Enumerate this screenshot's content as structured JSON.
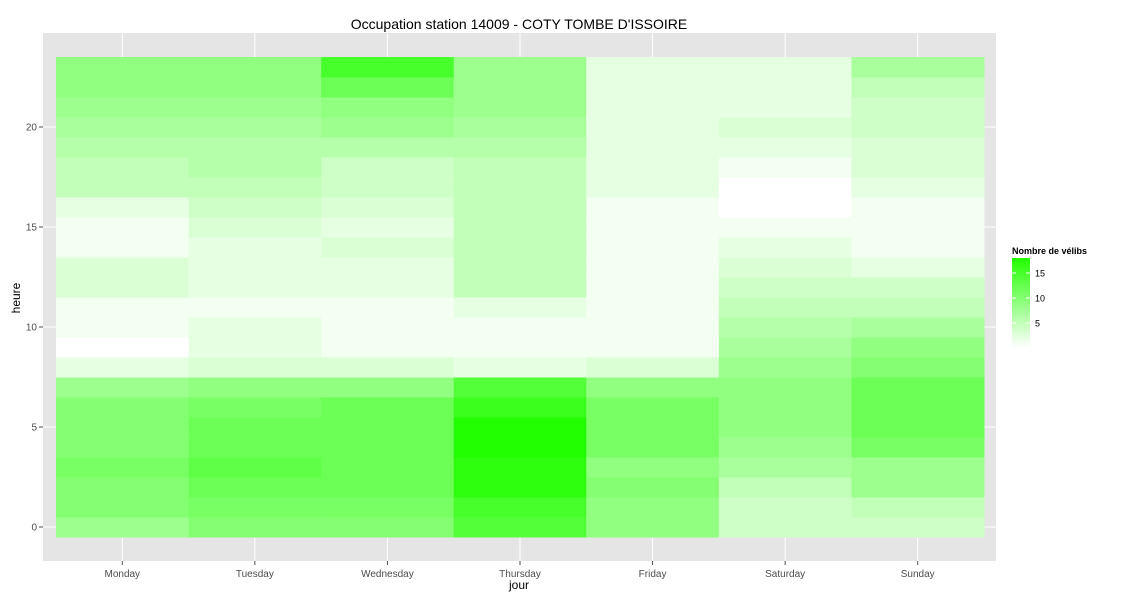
{
  "chart_data": {
    "type": "heatmap",
    "title": "Occupation station 14009 - COTY TOMBE D'ISSOIRE",
    "xlabel": "jour",
    "ylabel": "heure",
    "categories": [
      "Monday",
      "Tuesday",
      "Wednesday",
      "Thursday",
      "Friday",
      "Saturday",
      "Sunday"
    ],
    "hours": [
      0,
      1,
      2,
      3,
      4,
      5,
      6,
      7,
      8,
      9,
      10,
      11,
      12,
      13,
      14,
      15,
      16,
      17,
      18,
      19,
      20,
      21,
      22,
      23
    ],
    "y_ticks": [
      0,
      5,
      10,
      15,
      20
    ],
    "ylim": [
      -0.5,
      23.5
    ],
    "grid": true,
    "values": [
      [
        8,
        10,
        10,
        11,
        10,
        10,
        10,
        8,
        2,
        0,
        1,
        1,
        3,
        3,
        1,
        1,
        2,
        5,
        5,
        6,
        7,
        8,
        9,
        9
      ],
      [
        10,
        11,
        12,
        13,
        12,
        12,
        11,
        9,
        3,
        2,
        2,
        1,
        2,
        2,
        2,
        3,
        4,
        5,
        6,
        6,
        7,
        8,
        9,
        9
      ],
      [
        10,
        11,
        12,
        12,
        12,
        12,
        12,
        9,
        3,
        1,
        1,
        1,
        2,
        2,
        3,
        2,
        3,
        4,
        4,
        6,
        8,
        9,
        12,
        15
      ],
      [
        14,
        15,
        17,
        17,
        18,
        18,
        16,
        14,
        2,
        1,
        1,
        2,
        5,
        5,
        5,
        5,
        5,
        5,
        5,
        6,
        7,
        8,
        8,
        8
      ],
      [
        9,
        9,
        10,
        9,
        11,
        11,
        11,
        9,
        3,
        1,
        1,
        1,
        1,
        1,
        1,
        1,
        1,
        2,
        2,
        2,
        2,
        2,
        2,
        2
      ],
      [
        4,
        4,
        5,
        7,
        8,
        9,
        9,
        9,
        8,
        7,
        6,
        5,
        4,
        3,
        2,
        1,
        0,
        0,
        1,
        2,
        3,
        2,
        2,
        2
      ],
      [
        4,
        5,
        8,
        8,
        11,
        12,
        12,
        12,
        10,
        9,
        7,
        5,
        4,
        2,
        1,
        1,
        1,
        2,
        3,
        3,
        4,
        4,
        5,
        7
      ]
    ],
    "colorbar": {
      "title": "Nombre de vélibs",
      "min": 0,
      "max": 18,
      "ticks": [
        5,
        10,
        15
      ],
      "low_color": "#ffffff",
      "high_color": "#22ff00"
    },
    "colors": {
      "panel_bg": "#e5e5e5",
      "grid_color": "#ffffff"
    }
  }
}
